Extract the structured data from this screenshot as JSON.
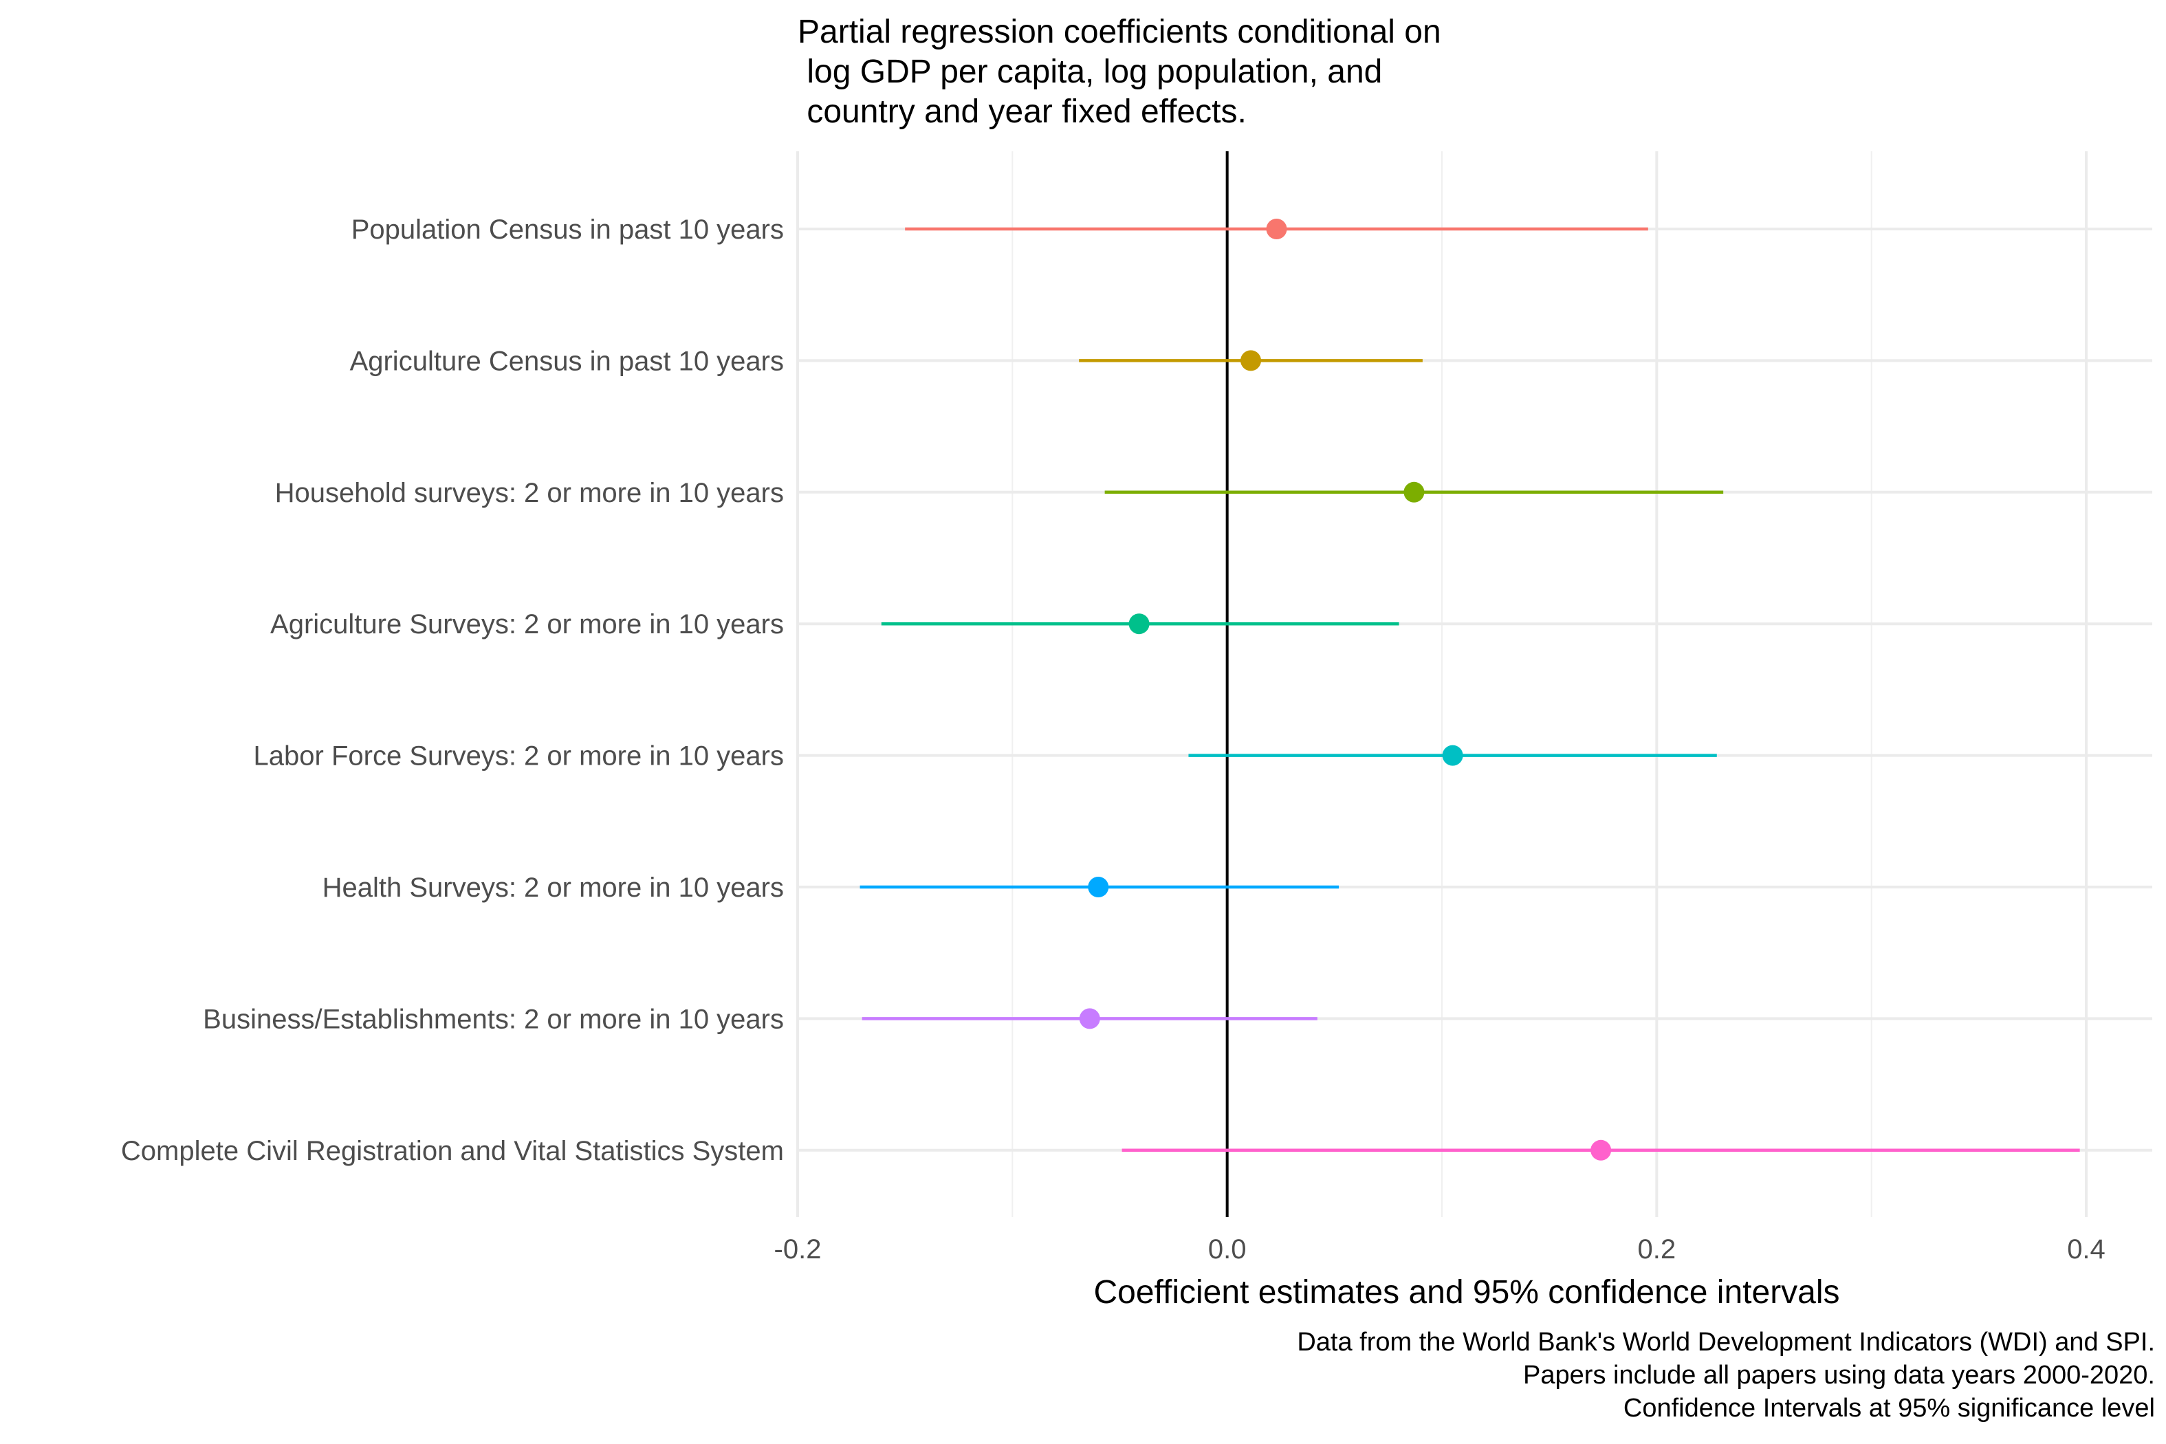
{
  "chart_data": {
    "type": "scatter",
    "title_lines": [
      "Partial regression coefficients conditional on",
      " log GDP per capita, log population, and",
      " country and year fixed effects."
    ],
    "xlabel": "Coefficient estimates and 95% confidence intervals",
    "ylabel": "",
    "xlim": [
      -0.2,
      0.4
    ],
    "x_ticks": [
      -0.2,
      0.0,
      0.2,
      0.4
    ],
    "x_tick_labels": [
      "-0.2",
      "0.0",
      "0.2",
      "0.4"
    ],
    "reference_line_x": 0,
    "grid": true,
    "legend": "none",
    "caption_lines": [
      "Data from the World Bank's World Development Indicators (WDI) and SPI.",
      "Papers include all papers using data years 2000-2020.",
      "Confidence Intervals at 95% significance level"
    ],
    "series": [
      {
        "label": "Population Census in past 10 years",
        "estimate": 0.023,
        "ci_low": -0.15,
        "ci_high": 0.196,
        "color": "#F8766D"
      },
      {
        "label": "Agriculture Census  in past 10 years",
        "estimate": 0.011,
        "ci_low": -0.069,
        "ci_high": 0.091,
        "color": "#C49A00"
      },
      {
        "label": "Household surveys: 2 or more in 10 years",
        "estimate": 0.087,
        "ci_low": -0.057,
        "ci_high": 0.231,
        "color": "#7CAE00"
      },
      {
        "label": "Agriculture Surveys: 2 or more in 10 years",
        "estimate": -0.041,
        "ci_low": -0.161,
        "ci_high": 0.08,
        "color": "#00C08B"
      },
      {
        "label": "Labor Force Surveys: 2 or more in 10 years",
        "estimate": 0.105,
        "ci_low": -0.018,
        "ci_high": 0.228,
        "color": "#00BFC4"
      },
      {
        "label": "Health Surveys: 2 or more in 10 years",
        "estimate": -0.06,
        "ci_low": -0.171,
        "ci_high": 0.052,
        "color": "#00A9FF"
      },
      {
        "label": "Business/Establishments: 2 or more in 10 years",
        "estimate": -0.064,
        "ci_low": -0.17,
        "ci_high": 0.042,
        "color": "#C77CFF"
      },
      {
        "label": "Complete Civil Registration and Vital Statistics System",
        "estimate": 0.174,
        "ci_low": -0.049,
        "ci_high": 0.397,
        "color": "#FF61CC"
      }
    ]
  }
}
